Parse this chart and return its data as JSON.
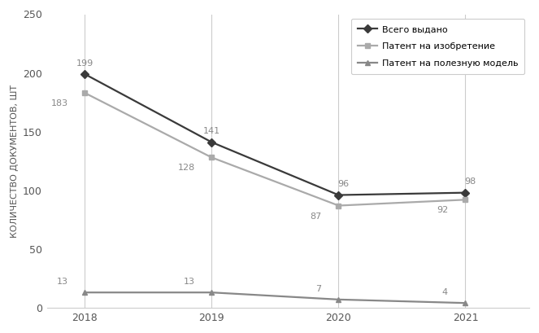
{
  "years": [
    2018,
    2019,
    2020,
    2021
  ],
  "series": [
    {
      "label": "Всего выдано",
      "values": [
        199,
        141,
        96,
        98
      ],
      "color": "#3a3a3a",
      "marker": "D",
      "markersize": 5,
      "linewidth": 1.6
    },
    {
      "label": "Патент на изобретение",
      "values": [
        183,
        128,
        87,
        92
      ],
      "color": "#aaaaaa",
      "marker": "s",
      "markersize": 5,
      "linewidth": 1.6
    },
    {
      "label": "Патент на полезную модель",
      "values": [
        13,
        13,
        7,
        4
      ],
      "color": "#888888",
      "marker": "^",
      "markersize": 5,
      "linewidth": 1.6
    }
  ],
  "ylabel": "КОЛИЧЕСТВО ДОКУМЕНТОВ, ШТ",
  "ylim": [
    0,
    250
  ],
  "yticks": [
    0,
    50,
    100,
    150,
    200,
    250
  ],
  "xticks": [
    2018,
    2019,
    2020,
    2021
  ],
  "grid_color": "#cccccc",
  "background_color": "#ffffff",
  "label_color": "#888888",
  "font_size_labels": 8,
  "font_size_ticks": 9,
  "font_size_ylabel": 8,
  "font_size_legend": 8
}
